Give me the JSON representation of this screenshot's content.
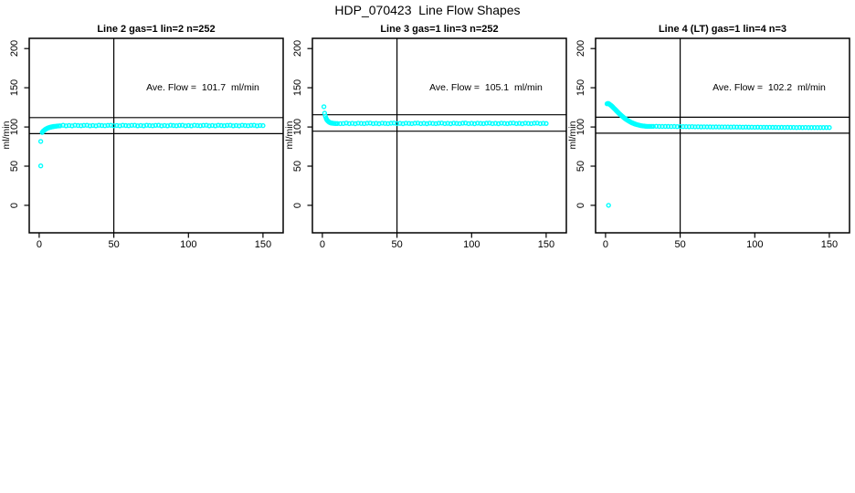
{
  "page_title": "HDP_070423  Line Flow Shapes",
  "colors": {
    "marker": "#00ffff",
    "axis": "#000000",
    "background": "#ffffff"
  },
  "chart_data": [
    {
      "type": "scatter",
      "title": "Line 2 gas=1 lin=2 n=252",
      "annotation": "Ave. Flow =  101.7  ml/min",
      "ave_flow_ml_min": 101.7,
      "xlabel": "",
      "ylabel": "ml/min",
      "xlim": [
        -6.7,
        163.5
      ],
      "ylim": [
        -35,
        213
      ],
      "x_ticks": [
        0,
        50,
        100,
        150
      ],
      "y_ticks": [
        0,
        50,
        100,
        150,
        200
      ],
      "vline_x": 50,
      "hlines_y": [
        91.5,
        111.9
      ],
      "marker": "open-circle",
      "marker_color": "#00ffff",
      "points": [
        [
          1,
          50.4
        ],
        [
          1,
          81.5
        ],
        [
          2,
          93
        ],
        [
          2.5,
          94.3
        ],
        [
          3,
          95.2
        ],
        [
          3.5,
          96
        ],
        [
          4,
          96.8
        ],
        [
          4.5,
          97.4
        ],
        [
          5,
          97.9
        ],
        [
          5.5,
          98.4
        ],
        [
          6,
          98.8
        ],
        [
          6.5,
          99.1
        ],
        [
          7,
          99.4
        ],
        [
          7.5,
          99.7
        ],
        [
          8,
          99.9
        ],
        [
          8.5,
          100.1
        ],
        [
          9,
          100.3
        ],
        [
          9.5,
          100.5
        ],
        [
          10,
          100.7
        ],
        [
          11,
          100.9
        ],
        [
          12,
          101.1
        ],
        [
          13,
          101.3
        ],
        [
          14,
          101.5
        ],
        [
          16,
          102.2
        ],
        [
          18,
          101.5
        ],
        [
          20,
          101.9
        ],
        [
          22,
          101.4
        ],
        [
          24,
          102.1
        ],
        [
          26,
          101.8
        ],
        [
          28,
          101.6
        ],
        [
          30,
          102.0
        ],
        [
          32,
          102.2
        ],
        [
          34,
          101.5
        ],
        [
          36,
          101.9
        ],
        [
          38,
          101.4
        ],
        [
          40,
          102.1
        ],
        [
          42,
          101.8
        ],
        [
          44,
          101.6
        ],
        [
          46,
          102.0
        ],
        [
          48,
          102.2
        ],
        [
          50,
          101.5
        ],
        [
          52,
          101.9
        ],
        [
          54,
          101.4
        ],
        [
          56,
          102.1
        ],
        [
          58,
          101.8
        ],
        [
          60,
          101.6
        ],
        [
          62,
          102.0
        ],
        [
          64,
          102.2
        ],
        [
          66,
          101.5
        ],
        [
          68,
          101.9
        ],
        [
          70,
          101.4
        ],
        [
          72,
          102.1
        ],
        [
          74,
          101.8
        ],
        [
          76,
          101.6
        ],
        [
          78,
          102.0
        ],
        [
          80,
          102.2
        ],
        [
          82,
          101.5
        ],
        [
          84,
          101.9
        ],
        [
          86,
          101.4
        ],
        [
          88,
          102.1
        ],
        [
          90,
          101.8
        ],
        [
          92,
          101.6
        ],
        [
          94,
          102.0
        ],
        [
          96,
          102.2
        ],
        [
          98,
          101.5
        ],
        [
          100,
          101.9
        ],
        [
          102,
          101.4
        ],
        [
          104,
          102.1
        ],
        [
          106,
          101.8
        ],
        [
          108,
          101.6
        ],
        [
          110,
          102.0
        ],
        [
          112,
          102.2
        ],
        [
          114,
          101.5
        ],
        [
          116,
          101.9
        ],
        [
          118,
          101.4
        ],
        [
          120,
          102.1
        ],
        [
          122,
          101.8
        ],
        [
          124,
          101.6
        ],
        [
          126,
          102.0
        ],
        [
          128,
          102.2
        ],
        [
          130,
          101.5
        ],
        [
          132,
          101.9
        ],
        [
          134,
          101.4
        ],
        [
          136,
          102.1
        ],
        [
          138,
          101.8
        ],
        [
          140,
          101.6
        ],
        [
          142,
          102.0
        ],
        [
          144,
          102.2
        ],
        [
          146,
          101.5
        ],
        [
          148,
          101.9
        ],
        [
          150,
          101.7
        ]
      ]
    },
    {
      "type": "scatter",
      "title": "Line 3 gas=1 lin=3 n=252",
      "annotation": "Ave. Flow =  105.1  ml/min",
      "ave_flow_ml_min": 105.1,
      "xlabel": "",
      "ylabel": "ml/min",
      "xlim": [
        -6.7,
        163.5
      ],
      "ylim": [
        -35,
        213
      ],
      "x_ticks": [
        0,
        50,
        100,
        150
      ],
      "y_ticks": [
        0,
        50,
        100,
        150,
        200
      ],
      "vline_x": 50,
      "hlines_y": [
        94.6,
        115.6
      ],
      "marker": "open-circle",
      "marker_color": "#00ffff",
      "points": [
        [
          1,
          125.8
        ],
        [
          1.5,
          117.5
        ],
        [
          2,
          113.8
        ],
        [
          2.5,
          111
        ],
        [
          3,
          109.2
        ],
        [
          3.5,
          107.8
        ],
        [
          4,
          106.9
        ],
        [
          4.5,
          106.2
        ],
        [
          5,
          105.7
        ],
        [
          5.5,
          105.3
        ],
        [
          6,
          105
        ],
        [
          6.5,
          104.8
        ],
        [
          7,
          104.7
        ],
        [
          8,
          104.5
        ],
        [
          9,
          104.4
        ],
        [
          10,
          104.4
        ],
        [
          12,
          104.3
        ],
        [
          14,
          104.4
        ],
        [
          16,
          104.9
        ],
        [
          18,
          104.2
        ],
        [
          20,
          104.6
        ],
        [
          22,
          104.1
        ],
        [
          24,
          104.8
        ],
        [
          26,
          104.5
        ],
        [
          28,
          104.3
        ],
        [
          30,
          104.7
        ],
        [
          32,
          104.9
        ],
        [
          34,
          104.2
        ],
        [
          36,
          104.6
        ],
        [
          38,
          104.1
        ],
        [
          40,
          104.8
        ],
        [
          42,
          104.5
        ],
        [
          44,
          104.3
        ],
        [
          46,
          104.7
        ],
        [
          48,
          104.9
        ],
        [
          50,
          104.2
        ],
        [
          52,
          104.6
        ],
        [
          54,
          104.1
        ],
        [
          56,
          104.8
        ],
        [
          58,
          104.5
        ],
        [
          60,
          104.3
        ],
        [
          62,
          104.7
        ],
        [
          64,
          104.9
        ],
        [
          66,
          104.2
        ],
        [
          68,
          104.6
        ],
        [
          70,
          104.1
        ],
        [
          72,
          104.8
        ],
        [
          74,
          104.5
        ],
        [
          76,
          104.3
        ],
        [
          78,
          104.7
        ],
        [
          80,
          104.9
        ],
        [
          82,
          104.2
        ],
        [
          84,
          104.6
        ],
        [
          86,
          104.1
        ],
        [
          88,
          104.8
        ],
        [
          90,
          104.5
        ],
        [
          92,
          104.3
        ],
        [
          94,
          104.7
        ],
        [
          96,
          104.9
        ],
        [
          98,
          104.2
        ],
        [
          100,
          104.6
        ],
        [
          102,
          104.1
        ],
        [
          104,
          104.8
        ],
        [
          106,
          104.5
        ],
        [
          108,
          104.3
        ],
        [
          110,
          104.7
        ],
        [
          112,
          104.9
        ],
        [
          114,
          104.2
        ],
        [
          116,
          104.6
        ],
        [
          118,
          104.1
        ],
        [
          120,
          104.8
        ],
        [
          122,
          104.5
        ],
        [
          124,
          104.3
        ],
        [
          126,
          104.7
        ],
        [
          128,
          104.9
        ],
        [
          130,
          104.2
        ],
        [
          132,
          104.6
        ],
        [
          134,
          104.1
        ],
        [
          136,
          104.8
        ],
        [
          138,
          104.5
        ],
        [
          140,
          104.3
        ],
        [
          142,
          104.7
        ],
        [
          144,
          104.9
        ],
        [
          146,
          104.2
        ],
        [
          148,
          104.6
        ],
        [
          150,
          104.4
        ]
      ]
    },
    {
      "type": "scatter",
      "title": "Line 4 (LT) gas=1 lin=4 n=3",
      "annotation": "Ave. Flow =  102.2  ml/min",
      "ave_flow_ml_min": 102.2,
      "xlabel": "",
      "ylabel": "ml/min",
      "xlim": [
        -6.7,
        163.5
      ],
      "ylim": [
        -35,
        213
      ],
      "x_ticks": [
        0,
        50,
        100,
        150
      ],
      "y_ticks": [
        0,
        50,
        100,
        150,
        200
      ],
      "vline_x": 50,
      "hlines_y": [
        92.0,
        112.4
      ],
      "marker": "open-circle",
      "marker_color": "#00ffff",
      "points": [
        [
          1,
          129.5
        ],
        [
          1.5,
          130
        ],
        [
          2,
          129.8
        ],
        [
          2,
          0
        ],
        [
          2.5,
          129.2
        ],
        [
          3,
          128.5
        ],
        [
          3.5,
          127.7
        ],
        [
          4,
          126.9
        ],
        [
          4.5,
          126
        ],
        [
          5,
          125.1
        ],
        [
          5.5,
          124.1
        ],
        [
          6,
          123.2
        ],
        [
          6.5,
          122.2
        ],
        [
          7,
          121.2
        ],
        [
          7.5,
          120.2
        ],
        [
          8,
          119.3
        ],
        [
          8.5,
          118.3
        ],
        [
          9,
          117.4
        ],
        [
          9.5,
          116.5
        ],
        [
          10,
          115.6
        ],
        [
          10.5,
          114.7
        ],
        [
          11,
          113.9
        ],
        [
          11.5,
          113.1
        ],
        [
          12,
          112.3
        ],
        [
          12.5,
          111.5
        ],
        [
          13,
          110.8
        ],
        [
          13.5,
          110.1
        ],
        [
          14,
          109.4
        ],
        [
          14.5,
          108.8
        ],
        [
          15,
          108.2
        ],
        [
          15.5,
          107.6
        ],
        [
          16,
          107
        ],
        [
          16.5,
          106.5
        ],
        [
          17,
          106
        ],
        [
          17.5,
          105.5
        ],
        [
          18,
          105.1
        ],
        [
          18.5,
          104.7
        ],
        [
          19,
          104.3
        ],
        [
          19.5,
          103.9
        ],
        [
          20,
          103.6
        ],
        [
          21,
          103
        ],
        [
          22,
          102.5
        ],
        [
          23,
          102
        ],
        [
          24,
          101.6
        ],
        [
          25,
          101.3
        ],
        [
          26,
          101.1
        ],
        [
          27,
          100.9
        ],
        [
          28,
          100.8
        ],
        [
          29,
          100.8
        ],
        [
          30,
          100.8
        ],
        [
          31,
          100.8
        ],
        [
          32,
          100.8
        ],
        [
          34,
          100.9
        ],
        [
          36,
          100.7
        ],
        [
          38,
          100.7
        ],
        [
          40,
          100.6
        ],
        [
          42,
          100.7
        ],
        [
          44,
          100.5
        ],
        [
          46,
          100.6
        ],
        [
          48,
          100.4
        ],
        [
          50,
          100.5
        ],
        [
          52,
          100.4
        ],
        [
          54,
          100.4
        ],
        [
          56,
          100.3
        ],
        [
          58,
          100.4
        ],
        [
          60,
          100.2
        ],
        [
          62,
          100.3
        ],
        [
          64,
          100.1
        ],
        [
          66,
          100.2
        ],
        [
          68,
          100.1
        ],
        [
          70,
          100.1
        ],
        [
          72,
          100.0
        ],
        [
          74,
          100.1
        ],
        [
          76,
          99.9
        ],
        [
          78,
          100.0
        ],
        [
          80,
          99.9
        ],
        [
          82,
          100.0
        ],
        [
          84,
          99.8
        ],
        [
          86,
          99.9
        ],
        [
          88,
          99.8
        ],
        [
          90,
          99.8
        ],
        [
          92,
          99.7
        ],
        [
          94,
          99.8
        ],
        [
          96,
          99.7
        ],
        [
          98,
          99.7
        ],
        [
          100,
          99.6
        ],
        [
          102,
          99.7
        ],
        [
          104,
          99.6
        ],
        [
          106,
          99.6
        ],
        [
          108,
          99.5
        ],
        [
          110,
          99.6
        ],
        [
          112,
          99.5
        ],
        [
          114,
          99.5
        ],
        [
          116,
          99.4
        ],
        [
          118,
          99.5
        ],
        [
          120,
          99.4
        ],
        [
          122,
          99.5
        ],
        [
          124,
          99.4
        ],
        [
          126,
          99.4
        ],
        [
          128,
          99.3
        ],
        [
          130,
          99.4
        ],
        [
          132,
          99.3
        ],
        [
          134,
          99.4
        ],
        [
          136,
          99.3
        ],
        [
          138,
          99.3
        ],
        [
          140,
          99.2
        ],
        [
          142,
          99.3
        ],
        [
          144,
          99.2
        ],
        [
          146,
          99.3
        ],
        [
          148,
          99.2
        ],
        [
          150,
          99.3
        ]
      ]
    }
  ]
}
